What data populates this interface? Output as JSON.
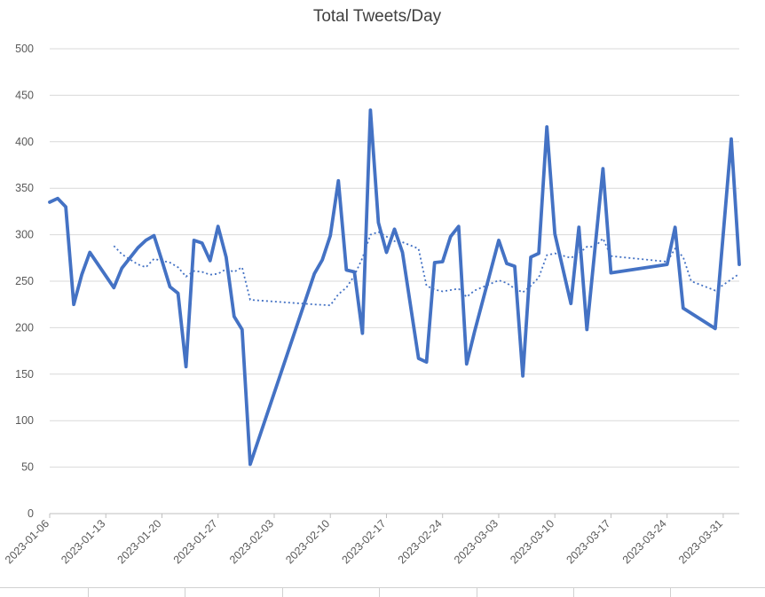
{
  "chart_data": {
    "type": "line",
    "title": "Total Tweets/Day",
    "xlabel": "",
    "ylabel": "",
    "ylim": [
      0,
      500
    ],
    "y_ticks": [
      0,
      50,
      100,
      150,
      200,
      250,
      300,
      350,
      400,
      450,
      500
    ],
    "x_range": [
      "2023-01-06",
      "2023-04-02"
    ],
    "x_tick_labels": [
      "2023-01-06",
      "2023-01-13",
      "2023-01-20",
      "2023-01-27",
      "2023-02-03",
      "2023-02-10",
      "2023-02-17",
      "2023-02-24",
      "2023-03-03",
      "2023-03-10",
      "2023-03-17",
      "2023-03-24",
      "2023-03-31"
    ],
    "grid": "horizontal",
    "legend": "none",
    "colors": {
      "series": "#4472c4",
      "grid": "#d9d9d9",
      "text": "#595959",
      "title": "#404040"
    },
    "series": [
      {
        "style": "solid",
        "points": [
          [
            "2023-01-06",
            335
          ],
          [
            "2023-01-07",
            339
          ],
          [
            "2023-01-08",
            330
          ],
          [
            "2023-01-09",
            225
          ],
          [
            "2023-01-10",
            257
          ],
          [
            "2023-01-11",
            281
          ],
          [
            "2023-01-14",
            243
          ],
          [
            "2023-01-15",
            264
          ],
          [
            "2023-01-17",
            286
          ],
          [
            "2023-01-18",
            294
          ],
          [
            "2023-01-19",
            299
          ],
          [
            "2023-01-20",
            272
          ],
          [
            "2023-01-21",
            244
          ],
          [
            "2023-01-22",
            237
          ],
          [
            "2023-01-23",
            158
          ],
          [
            "2023-01-24",
            294
          ],
          [
            "2023-01-25",
            291
          ],
          [
            "2023-01-26",
            272
          ],
          [
            "2023-01-27",
            309
          ],
          [
            "2023-01-28",
            276
          ],
          [
            "2023-01-29",
            212
          ],
          [
            "2023-01-30",
            198
          ],
          [
            "2023-01-31",
            53
          ],
          [
            "2023-02-08",
            258
          ],
          [
            "2023-02-09",
            273
          ],
          [
            "2023-02-10",
            299
          ],
          [
            "2023-02-11",
            358
          ],
          [
            "2023-02-12",
            262
          ],
          [
            "2023-02-13",
            260
          ],
          [
            "2023-02-14",
            194
          ],
          [
            "2023-02-15",
            434
          ],
          [
            "2023-02-16",
            313
          ],
          [
            "2023-02-17",
            281
          ],
          [
            "2023-02-18",
            306
          ],
          [
            "2023-02-19",
            281
          ],
          [
            "2023-02-21",
            167
          ],
          [
            "2023-02-22",
            163
          ],
          [
            "2023-02-23",
            270
          ],
          [
            "2023-02-24",
            271
          ],
          [
            "2023-02-25",
            298
          ],
          [
            "2023-02-26",
            309
          ],
          [
            "2023-02-27",
            161
          ],
          [
            "2023-02-28",
            196
          ],
          [
            "2023-03-03",
            294
          ],
          [
            "2023-03-04",
            269
          ],
          [
            "2023-03-05",
            266
          ],
          [
            "2023-03-06",
            148
          ],
          [
            "2023-03-07",
            276
          ],
          [
            "2023-03-08",
            280
          ],
          [
            "2023-03-09",
            416
          ],
          [
            "2023-03-10",
            301
          ],
          [
            "2023-03-12",
            226
          ],
          [
            "2023-03-13",
            308
          ],
          [
            "2023-03-14",
            198
          ],
          [
            "2023-03-16",
            371
          ],
          [
            "2023-03-17",
            259
          ],
          [
            "2023-03-24",
            268
          ],
          [
            "2023-03-25",
            308
          ],
          [
            "2023-03-26",
            221
          ],
          [
            "2023-03-30",
            199
          ],
          [
            "2023-04-01",
            403
          ],
          [
            "2023-04-02",
            268
          ]
        ]
      },
      {
        "style": "dotted",
        "points": [
          [
            "2023-01-14",
            288
          ],
          [
            "2023-01-15",
            279
          ],
          [
            "2023-01-17",
            268
          ],
          [
            "2023-01-18",
            265
          ],
          [
            "2023-01-19",
            274
          ],
          [
            "2023-01-21",
            270
          ],
          [
            "2023-01-22",
            265
          ],
          [
            "2023-01-23",
            255
          ],
          [
            "2023-01-24",
            261
          ],
          [
            "2023-01-25",
            260
          ],
          [
            "2023-01-26",
            257
          ],
          [
            "2023-01-27",
            258
          ],
          [
            "2023-01-28",
            263
          ],
          [
            "2023-01-29",
            260
          ],
          [
            "2023-01-30",
            265
          ],
          [
            "2023-01-31",
            230
          ],
          [
            "2023-02-08",
            225
          ],
          [
            "2023-02-10",
            224
          ],
          [
            "2023-02-11",
            236
          ],
          [
            "2023-02-12",
            243
          ],
          [
            "2023-02-13",
            256
          ],
          [
            "2023-02-14",
            275
          ],
          [
            "2023-02-15",
            300
          ],
          [
            "2023-02-16",
            303
          ],
          [
            "2023-02-17",
            298
          ],
          [
            "2023-02-18",
            293
          ],
          [
            "2023-02-19",
            292
          ],
          [
            "2023-02-21",
            285
          ],
          [
            "2023-02-22",
            245
          ],
          [
            "2023-02-23",
            241
          ],
          [
            "2023-02-24",
            239
          ],
          [
            "2023-02-26",
            242
          ],
          [
            "2023-02-27",
            233
          ],
          [
            "2023-02-28",
            240
          ],
          [
            "2023-03-03",
            251
          ],
          [
            "2023-03-04",
            248
          ],
          [
            "2023-03-05",
            242
          ],
          [
            "2023-03-06",
            238
          ],
          [
            "2023-03-07",
            245
          ],
          [
            "2023-03-08",
            254
          ],
          [
            "2023-03-09",
            278
          ],
          [
            "2023-03-10",
            280
          ],
          [
            "2023-03-12",
            275
          ],
          [
            "2023-03-13",
            280
          ],
          [
            "2023-03-14",
            287
          ],
          [
            "2023-03-15",
            287
          ],
          [
            "2023-03-16",
            296
          ],
          [
            "2023-03-17",
            277
          ],
          [
            "2023-03-24",
            271
          ],
          [
            "2023-03-25",
            285
          ],
          [
            "2023-03-26",
            276
          ],
          [
            "2023-03-27",
            250
          ],
          [
            "2023-03-30",
            240
          ],
          [
            "2023-04-01",
            252
          ],
          [
            "2023-04-02",
            258
          ]
        ]
      }
    ]
  }
}
